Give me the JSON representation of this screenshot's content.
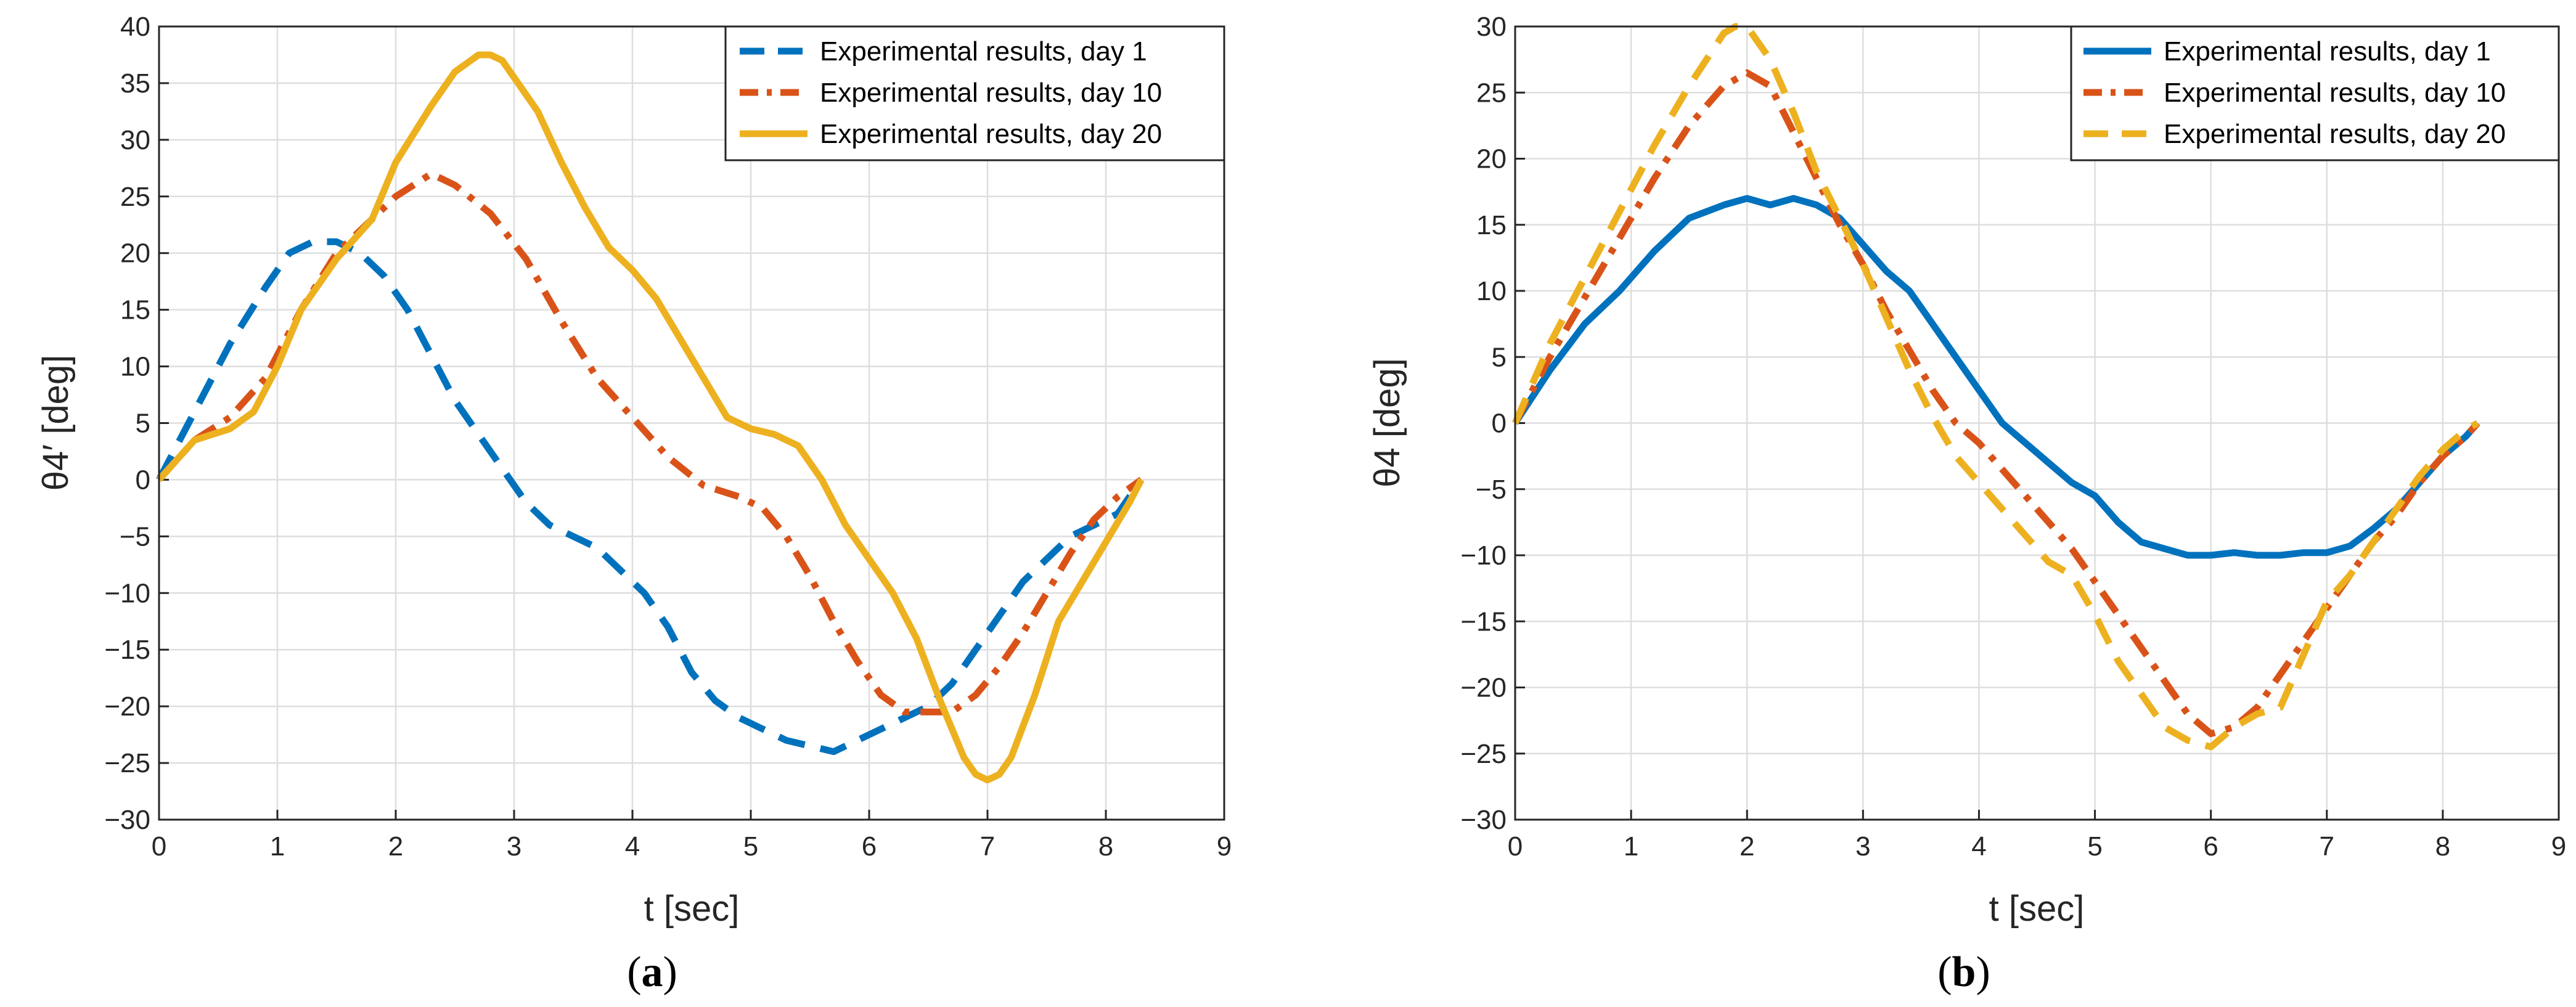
{
  "colors": {
    "blue": "#0072BD",
    "orange": "#D95319",
    "yellow": "#EDB120",
    "grid": "#DEDEDE",
    "axis": "#262626"
  },
  "chart_data": [
    {
      "type": "line",
      "caption": "a",
      "xlabel": "t [sec]",
      "ylabel": "θ4′ [deg]",
      "xlim": [
        0,
        9
      ],
      "ylim": [
        -30,
        40
      ],
      "xticks": [
        0,
        1,
        2,
        3,
        4,
        5,
        6,
        7,
        8,
        9
      ],
      "yticks": [
        -30,
        -25,
        -20,
        -15,
        -10,
        -5,
        0,
        5,
        10,
        15,
        20,
        25,
        30,
        35,
        40
      ],
      "grid": true,
      "legend_position": "top-right",
      "series": [
        {
          "name": "Experimental results, day 1",
          "color": "#0072BD",
          "style": "dashed",
          "x": [
            0,
            0.3,
            0.6,
            0.9,
            1.1,
            1.3,
            1.5,
            1.7,
            1.9,
            2.1,
            2.3,
            2.5,
            2.7,
            2.9,
            3.1,
            3.3,
            3.5,
            3.7,
            3.9,
            4.1,
            4.3,
            4.5,
            4.7,
            4.9,
            5.1,
            5.3,
            5.5,
            5.7,
            5.9,
            6.1,
            6.3,
            6.5,
            6.7,
            6.9,
            7.1,
            7.3,
            7.5,
            7.7,
            7.9,
            8.1,
            8.3
          ],
          "y": [
            0,
            6,
            12,
            17,
            20,
            21,
            21,
            20,
            18,
            15,
            11,
            7,
            4,
            1,
            -2,
            -4,
            -5,
            -6,
            -8,
            -10,
            -13,
            -17,
            -19.5,
            -21,
            -22,
            -23,
            -23.5,
            -24,
            -23,
            -22,
            -21,
            -20,
            -18,
            -15,
            -12,
            -9,
            -7,
            -5,
            -4,
            -3,
            0
          ]
        },
        {
          "name": "Experimental results, day 10",
          "color": "#D95319",
          "style": "dashdot",
          "x": [
            0,
            0.3,
            0.6,
            0.9,
            1.2,
            1.5,
            1.8,
            2.0,
            2.3,
            2.5,
            2.8,
            3.1,
            3.4,
            3.7,
            4.0,
            4.3,
            4.6,
            4.9,
            5.1,
            5.3,
            5.5,
            5.7,
            5.9,
            6.1,
            6.3,
            6.5,
            6.7,
            6.9,
            7.1,
            7.3,
            7.5,
            7.7,
            7.9,
            8.1,
            8.3
          ],
          "y": [
            0,
            3.5,
            5.5,
            9,
            15,
            20,
            23,
            25,
            27,
            26,
            23.5,
            19.5,
            14,
            9,
            5.5,
            2,
            -0.5,
            -1.5,
            -2.5,
            -5,
            -8.5,
            -12.5,
            -16,
            -19,
            -20.5,
            -20.5,
            -20.5,
            -19,
            -16.5,
            -13.5,
            -10,
            -6.5,
            -3.5,
            -1.5,
            0
          ]
        },
        {
          "name": "Experimental results, day 20",
          "color": "#EDB120",
          "style": "solid",
          "x": [
            0,
            0.3,
            0.6,
            0.8,
            1.0,
            1.2,
            1.5,
            1.8,
            2.0,
            2.3,
            2.5,
            2.7,
            2.8,
            2.9,
            3.0,
            3.2,
            3.4,
            3.6,
            3.8,
            4.0,
            4.2,
            4.4,
            4.6,
            4.8,
            5.0,
            5.2,
            5.4,
            5.6,
            5.8,
            6.0,
            6.2,
            6.4,
            6.6,
            6.8,
            6.9,
            7.0,
            7.1,
            7.2,
            7.4,
            7.6,
            7.8,
            8.0,
            8.2,
            8.3
          ],
          "y": [
            0,
            3.5,
            4.5,
            6,
            10,
            15,
            19.5,
            23,
            28,
            33,
            36,
            37.5,
            37.5,
            37,
            35.5,
            32.5,
            28,
            24,
            20.5,
            18.5,
            16,
            12.5,
            9,
            5.5,
            4.5,
            4,
            3,
            0,
            -4,
            -7,
            -10,
            -14,
            -19.5,
            -24.5,
            -26,
            -26.5,
            -26,
            -24.5,
            -19,
            -12.5,
            -9,
            -5.5,
            -2,
            0
          ]
        }
      ]
    },
    {
      "type": "line",
      "caption": "b",
      "xlabel": "t [sec]",
      "ylabel": "θ4 [deg]",
      "xlim": [
        0,
        9
      ],
      "ylim": [
        -30,
        30
      ],
      "xticks": [
        0,
        1,
        2,
        3,
        4,
        5,
        6,
        7,
        8,
        9
      ],
      "yticks": [
        -30,
        -25,
        -20,
        -15,
        -10,
        -5,
        0,
        5,
        10,
        15,
        20,
        25,
        30
      ],
      "grid": true,
      "legend_position": "top-right",
      "series": [
        {
          "name": "Experimental results, day 1",
          "color": "#0072BD",
          "style": "solid",
          "x": [
            0,
            0.3,
            0.6,
            0.9,
            1.2,
            1.5,
            1.8,
            2.0,
            2.2,
            2.4,
            2.6,
            2.8,
            3.0,
            3.2,
            3.4,
            3.6,
            3.8,
            4.0,
            4.2,
            4.4,
            4.6,
            4.8,
            5.0,
            5.2,
            5.4,
            5.6,
            5.8,
            6.0,
            6.2,
            6.4,
            6.6,
            6.8,
            7.0,
            7.2,
            7.4,
            7.6,
            7.8,
            8.0,
            8.2,
            8.3
          ],
          "y": [
            0,
            4,
            7.5,
            10,
            13,
            15.5,
            16.5,
            17,
            16.5,
            17,
            16.5,
            15.5,
            13.5,
            11.5,
            10,
            7.5,
            5,
            2.5,
            0,
            -1.5,
            -3,
            -4.5,
            -5.5,
            -7.5,
            -9,
            -9.5,
            -10,
            -10,
            -9.8,
            -10,
            -10,
            -9.8,
            -9.8,
            -9.3,
            -8,
            -6.5,
            -4.5,
            -2.5,
            -1,
            0
          ]
        },
        {
          "name": "Experimental results, day 10",
          "color": "#D95319",
          "style": "dashdot",
          "x": [
            0,
            0.3,
            0.6,
            0.9,
            1.2,
            1.5,
            1.8,
            2.0,
            2.2,
            2.4,
            2.6,
            2.8,
            3.0,
            3.2,
            3.4,
            3.6,
            3.8,
            4.0,
            4.2,
            4.4,
            4.6,
            4.8,
            5.0,
            5.2,
            5.4,
            5.6,
            5.8,
            6.0,
            6.2,
            6.4,
            6.6,
            6.8,
            7.0,
            7.2,
            7.4,
            7.6,
            7.8,
            8.0,
            8.2,
            8.3
          ],
          "y": [
            0,
            5,
            9.5,
            14,
            18.5,
            22.5,
            25.5,
            26.5,
            25.5,
            22,
            18.5,
            15,
            12,
            8.5,
            5.5,
            2.5,
            0,
            -1.5,
            -3.5,
            -5.5,
            -7.5,
            -9.5,
            -12,
            -14.5,
            -17,
            -19.5,
            -22,
            -23.5,
            -23,
            -21.5,
            -19,
            -16.5,
            -14,
            -11.5,
            -9,
            -7,
            -4.5,
            -2.5,
            -1,
            0
          ]
        },
        {
          "name": "Experimental results, day 20",
          "color": "#EDB120",
          "style": "dashed",
          "x": [
            0,
            0.3,
            0.6,
            0.9,
            1.2,
            1.5,
            1.8,
            1.9,
            2.0,
            2.2,
            2.4,
            2.6,
            2.8,
            3.0,
            3.2,
            3.4,
            3.6,
            3.8,
            4.0,
            4.2,
            4.4,
            4.6,
            4.8,
            5.0,
            5.2,
            5.4,
            5.6,
            5.8,
            6.0,
            6.2,
            6.4,
            6.6,
            6.8,
            7.0,
            7.2,
            7.4,
            7.6,
            7.8,
            8.0,
            8.2,
            8.3
          ],
          "y": [
            0,
            6,
            11,
            16,
            21,
            25.5,
            29.5,
            30,
            30,
            27.5,
            23.5,
            19,
            15.5,
            12,
            8,
            4,
            0.5,
            -2.5,
            -4.5,
            -6.5,
            -8.5,
            -10.5,
            -11.5,
            -14.5,
            -18,
            -20.5,
            -23,
            -24,
            -24.5,
            -23,
            -22,
            -21.5,
            -17.5,
            -13.5,
            -11.5,
            -9,
            -6.5,
            -4,
            -2,
            -0.5,
            0
          ]
        }
      ]
    }
  ]
}
